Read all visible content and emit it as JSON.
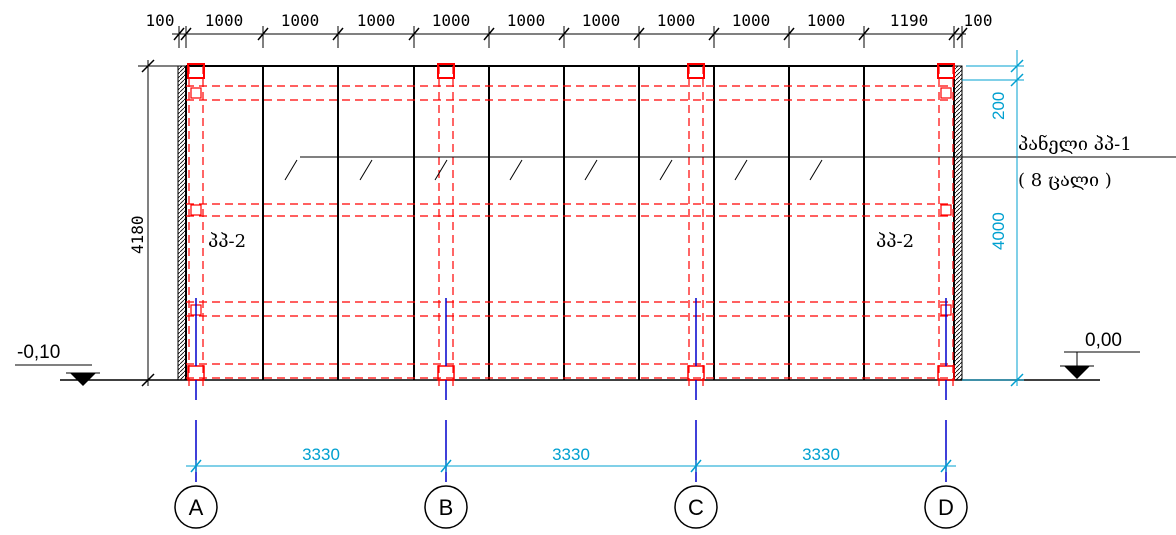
{
  "top_dimensions": [
    "100",
    "1000",
    "1000",
    "1000",
    "1000",
    "1000",
    "1000",
    "1000",
    "1000",
    "1000",
    "1190",
    "100"
  ],
  "height_dimension": "4180",
  "right_dimensions": {
    "upper": "200",
    "lower": "4000"
  },
  "panel_label": {
    "line1": "პანელი პპ-1",
    "line2": "( 8 ცალი )"
  },
  "left_panel_label": "პპ-2",
  "right_panel_label": "პპ-2",
  "level_left": "-0,10",
  "level_right": "0,00",
  "axis_dimensions": [
    "3330",
    "3330",
    "3330"
  ],
  "axes": [
    "A",
    "B",
    "C",
    "D"
  ],
  "colors": {
    "structure": "#000000",
    "hidden": "#ff0000",
    "axis": "#0000cc",
    "dimension": "#00a0d0"
  }
}
